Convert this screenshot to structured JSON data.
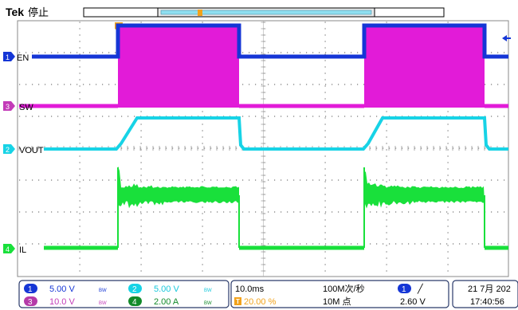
{
  "header": {
    "brand": "Tek",
    "status": "停止"
  },
  "channels": [
    {
      "num": "1",
      "label": "EN",
      "color": "#1536d6"
    },
    {
      "num": "3",
      "label": "SW",
      "color": "#e21bd8"
    },
    {
      "num": "2",
      "label": "VOUT",
      "color": "#17d3e6"
    },
    {
      "num": "4",
      "label": "IL",
      "color": "#19e03b"
    }
  ],
  "trigger_marker": "T",
  "footer": {
    "ch1": {
      "num": "1",
      "scale": "5.00 V",
      "bw": "BW"
    },
    "ch2": {
      "num": "2",
      "scale": "5.00 V",
      "bw": "BW"
    },
    "ch3": {
      "num": "3",
      "scale": "10.0 V",
      "bw": "BW"
    },
    "ch4": {
      "num": "4",
      "scale": "2.00 A",
      "bw": "BW"
    },
    "timebase": "10.0ms",
    "trigger_pos": "20.00 %",
    "sample_rate": "100M次/秒",
    "record_length": "10M 点",
    "trig_source": "1",
    "trig_slope": "╱",
    "trig_level": "2.60 V",
    "date": "21 7月 202",
    "time": "17:40:56"
  }
}
